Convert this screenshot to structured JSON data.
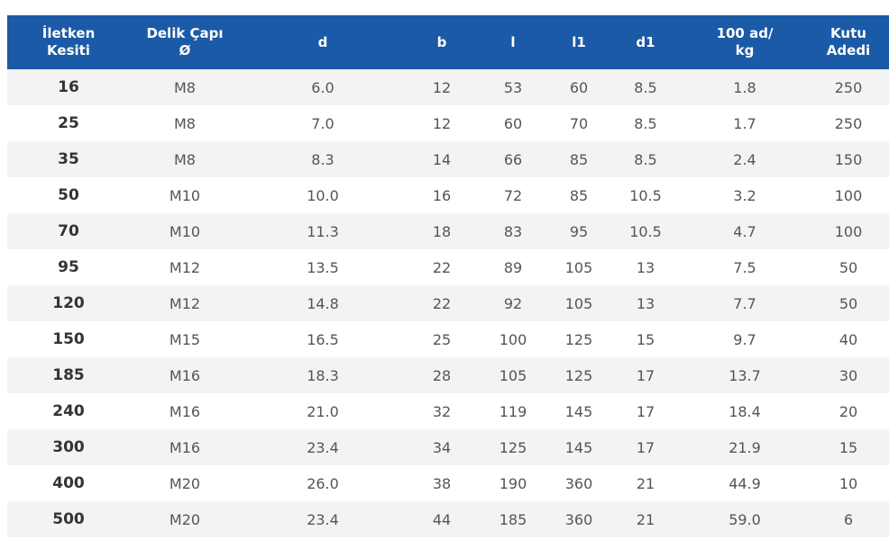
{
  "table": {
    "headers": [
      [
        "İletken",
        "Kesiti"
      ],
      [
        "Delik Çapı",
        "Ø"
      ],
      [
        "d"
      ],
      [
        "b"
      ],
      [
        "l"
      ],
      [
        "l1"
      ],
      [
        "d1"
      ],
      [
        "100 ad/",
        "kg"
      ],
      [
        "Kutu",
        "Adedi"
      ]
    ],
    "rows": [
      [
        "16",
        "M8",
        "6.0",
        "12",
        "53",
        "60",
        "8.5",
        "1.8",
        "250"
      ],
      [
        "25",
        "M8",
        "7.0",
        "12",
        "60",
        "70",
        "8.5",
        "1.7",
        "250"
      ],
      [
        "35",
        "M8",
        "8.3",
        "14",
        "66",
        "85",
        "8.5",
        "2.4",
        "150"
      ],
      [
        "50",
        "M10",
        "10.0",
        "16",
        "72",
        "85",
        "10.5",
        "3.2",
        "100"
      ],
      [
        "70",
        "M10",
        "11.3",
        "18",
        "83",
        "95",
        "10.5",
        "4.7",
        "100"
      ],
      [
        "95",
        "M12",
        "13.5",
        "22",
        "89",
        "105",
        "13",
        "7.5",
        "50"
      ],
      [
        "120",
        "M12",
        "14.8",
        "22",
        "92",
        "105",
        "13",
        "7.7",
        "50"
      ],
      [
        "150",
        "M15",
        "16.5",
        "25",
        "100",
        "125",
        "15",
        "9.7",
        "40"
      ],
      [
        "185",
        "M16",
        "18.3",
        "28",
        "105",
        "125",
        "17",
        "13.7",
        "30"
      ],
      [
        "240",
        "M16",
        "21.0",
        "32",
        "119",
        "145",
        "17",
        "18.4",
        "20"
      ],
      [
        "300",
        "M16",
        "23.4",
        "34",
        "125",
        "145",
        "17",
        "21.9",
        "15"
      ],
      [
        "400",
        "M20",
        "26.0",
        "38",
        "190",
        "360",
        "21",
        "44.9",
        "10"
      ],
      [
        "500",
        "M20",
        "23.4",
        "44",
        "185",
        "360",
        "21",
        "59.0",
        "6"
      ]
    ]
  },
  "colors": {
    "header_bg": "#1b5aa6",
    "header_text": "#ffffff",
    "row_alt": "#f3f3f3",
    "row_base": "#ffffff",
    "cell_text": "#555555"
  }
}
